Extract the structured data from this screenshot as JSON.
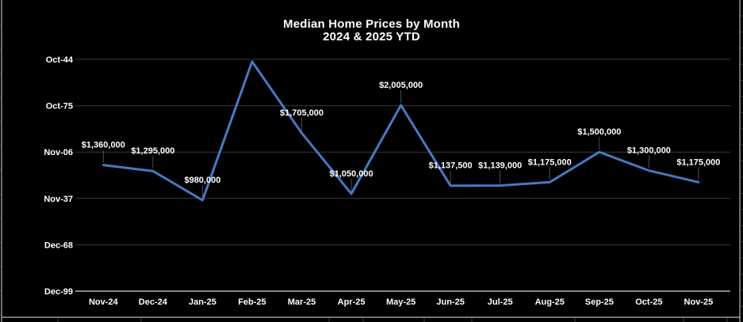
{
  "title": {
    "line1": "Median Home Prices by Month",
    "line2": "2024 & 2025 YTD"
  },
  "chart_data": {
    "type": "line",
    "title": "Median Home Prices by Month 2024 & 2025 YTD",
    "categories": [
      "Nov-24",
      "Dec-24",
      "Jan-25",
      "Feb-25",
      "Mar-25",
      "Apr-25",
      "May-25",
      "Jun-25",
      "Jul-25",
      "Aug-25",
      "Sep-25",
      "Oct-25",
      "Nov-25"
    ],
    "values": [
      1360000,
      1295000,
      980000,
      2475000,
      1705000,
      1050000,
      2005000,
      1137500,
      1139000,
      1175000,
      1500000,
      1300000,
      1175000
    ],
    "data_labels": [
      "$1,360,000",
      "$1,295,000",
      "$980,000",
      "",
      "$1,705,000",
      "$1,050,000",
      "$2,005,000",
      "$1,137,500",
      "$1,139,000",
      "$1,175,000",
      "$1,500,000",
      "$1,300,000",
      "$1,175,000"
    ],
    "note": "Feb-25 peak is plotted (approx $2,475,000 estimated from gridlines) but shows no data label in the chart",
    "y_ticks": [
      {
        "label": "Oct-44",
        "value": 2500000
      },
      {
        "label": "Oct-75",
        "value": 2000000
      },
      {
        "label": "Nov-06",
        "value": 1500000
      },
      {
        "label": "Nov-37",
        "value": 1000000
      },
      {
        "label": "Dec-68",
        "value": 500000
      },
      {
        "label": "Dec-99",
        "value": 0
      }
    ],
    "y_axis_format": "dates shown for dollar values (spreadsheet date-format artifact)",
    "ylim": [
      0,
      2500000
    ],
    "xlabel": "",
    "ylabel": "",
    "grid": "horizontal-major",
    "legend": "none",
    "colors": {
      "background": "#000000",
      "line": "#4878C0",
      "gridline": "#3a3a3a",
      "axis_line": "#d9d9d9",
      "text": "#ffffff",
      "leader_line": "#4d4d4d",
      "frame_line": "#b9b9b9",
      "cell_gridline": "#3f3f3f"
    }
  }
}
